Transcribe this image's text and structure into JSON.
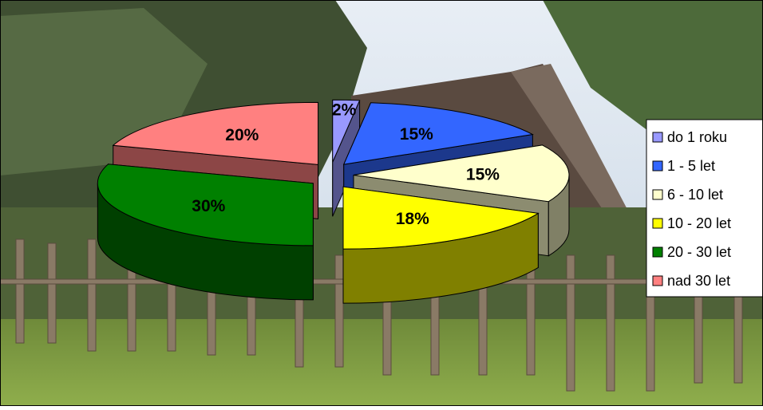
{
  "chart_data": {
    "type": "pie",
    "categories": [
      "do 1 roku",
      "1 - 5 let",
      "6 - 10 let",
      "10 - 20 let",
      "20 - 30 let",
      "nad 30 let"
    ],
    "values": [
      2,
      15,
      15,
      18,
      30,
      20
    ],
    "value_labels": [
      "2%",
      "15%",
      "15%",
      "18%",
      "30%",
      "20%"
    ],
    "colors": [
      "#9999ff",
      "#3366ff",
      "#ffffcc",
      "#ffff00",
      "#008000",
      "#ff8080"
    ],
    "legend": "right"
  }
}
